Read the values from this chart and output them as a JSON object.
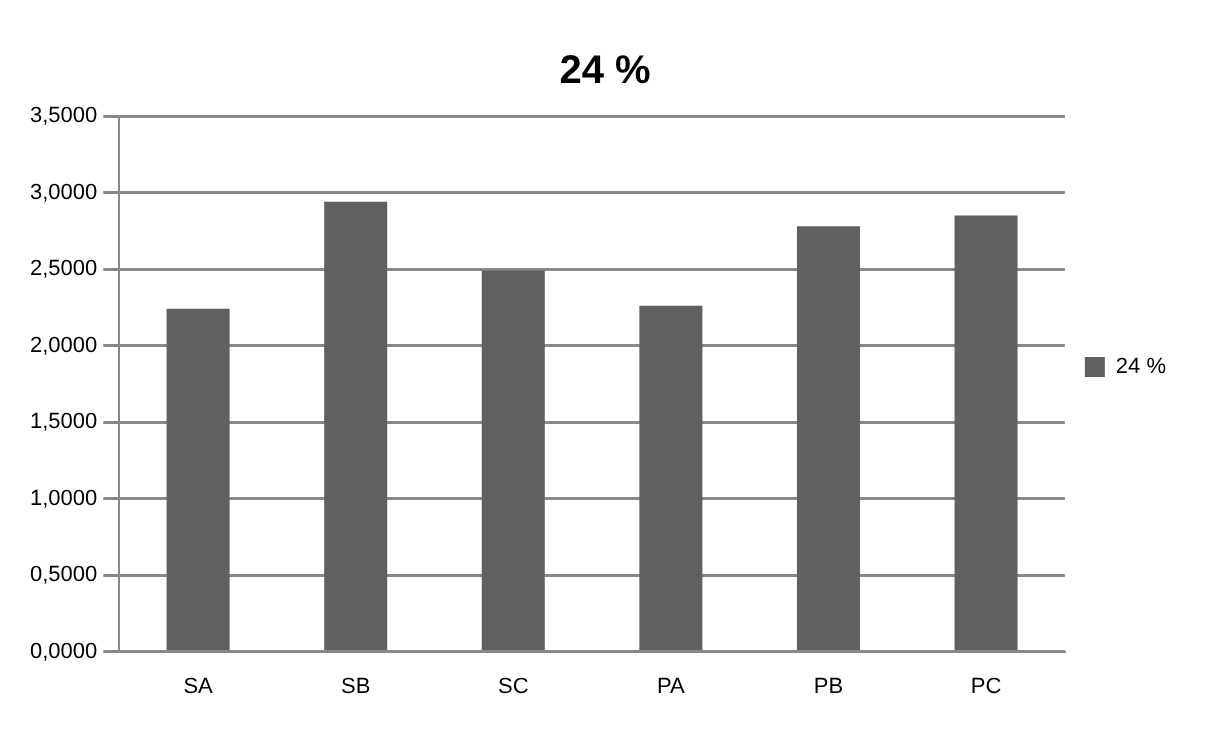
{
  "chart_data": {
    "type": "bar",
    "title": "24 %",
    "categories": [
      "SA",
      "SB",
      "SC",
      "PA",
      "PB",
      "PC"
    ],
    "series": [
      {
        "name": "24 %",
        "color": "#606060",
        "values": [
          2.24,
          2.94,
          2.49,
          2.26,
          2.78,
          2.85
        ]
      }
    ],
    "ylim": [
      0,
      3.5
    ],
    "yticks": [
      {
        "value": 0,
        "label": "0,0000"
      },
      {
        "value": 0.5,
        "label": "0,5000"
      },
      {
        "value": 1,
        "label": "1,0000"
      },
      {
        "value": 1.5,
        "label": "1,5000"
      },
      {
        "value": 2,
        "label": "2,0000"
      },
      {
        "value": 2.5,
        "label": "2,5000"
      },
      {
        "value": 3,
        "label": "3,0000"
      },
      {
        "value": 3.5,
        "label": "3,5000"
      }
    ],
    "grid": "y",
    "legend": "right"
  }
}
